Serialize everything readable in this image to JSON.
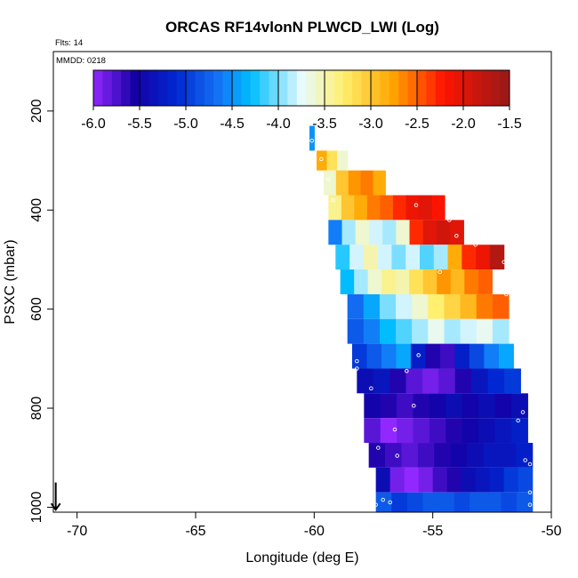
{
  "chart_data": {
    "type": "heatmap",
    "title": "ORCAS RF14vlonN PLWCD_LWI (Log)",
    "annotations": [
      "Flts: 14",
      "MMDD: 0218"
    ],
    "xlabel": "Longitude (deg E)",
    "ylabel": "PSXC (mbar)",
    "xlim": [
      -71,
      -50
    ],
    "ylim": [
      1010,
      80
    ],
    "x_ticks": [
      -70,
      -65,
      -60,
      -55,
      -50
    ],
    "y_ticks": [
      200,
      400,
      600,
      800,
      1000
    ],
    "colorbar": {
      "range": [
        -6.0,
        -1.5
      ],
      "ticks": [
        -6.0,
        -5.5,
        -5.0,
        -4.5,
        -4.0,
        -3.5,
        -3.0,
        -2.5,
        -2.0,
        -1.5
      ],
      "tick_labels": [
        "-6.0",
        "-5.5",
        "-5.0",
        "-4.5",
        "-4.0",
        "-3.5",
        "-3.0",
        "-2.5",
        "-2.0",
        "-1.5"
      ],
      "segments": 45
    },
    "rows": [
      {
        "p_top": 230,
        "p_bot": 280,
        "x0": -60.2,
        "x1": -60.0,
        "values": [
          -4.5
        ]
      },
      {
        "p_top": 280,
        "p_bot": 320,
        "x0": -59.9,
        "x1": -58.6,
        "values": [
          -2.8,
          -3.2,
          -3.6
        ]
      },
      {
        "p_top": 320,
        "p_bot": 370,
        "x0": -59.6,
        "x1": -57.0,
        "values": [
          -3.6,
          -3.0,
          -2.7,
          -2.6,
          -2.8
        ]
      },
      {
        "p_top": 370,
        "p_bot": 420,
        "x0": -59.4,
        "x1": -54.5,
        "values": [
          -3.4,
          -3.0,
          -2.8,
          -2.6,
          -2.5,
          -2.3,
          -2.1,
          -2.0,
          -2.2
        ]
      },
      {
        "p_top": 420,
        "p_bot": 470,
        "x0": -59.4,
        "x1": -53.7,
        "values": [
          -4.6,
          -3.9,
          -3.6,
          -3.8,
          -3.9,
          -3.6,
          -2.3,
          -2.0,
          -1.9,
          -2.0
        ]
      },
      {
        "p_top": 470,
        "p_bot": 520,
        "x0": -59.1,
        "x1": -52.0,
        "values": [
          -4.2,
          -3.8,
          -3.5,
          -3.8,
          -4.0,
          -3.8,
          -4.1,
          -3.9,
          -2.8,
          -2.3,
          -2.1,
          -1.7
        ]
      },
      {
        "p_top": 520,
        "p_bot": 570,
        "x0": -58.9,
        "x1": -52.5,
        "values": [
          -4.3,
          -3.9,
          -3.6,
          -3.4,
          -3.5,
          -3.2,
          -3.0,
          -2.7,
          -2.9,
          -2.6,
          -2.5
        ]
      },
      {
        "p_top": 570,
        "p_bot": 620,
        "x0": -58.6,
        "x1": -51.8,
        "values": [
          -4.7,
          -4.4,
          -4.0,
          -3.8,
          -3.6,
          -3.3,
          -3.1,
          -2.9,
          -2.6,
          -2.5
        ]
      },
      {
        "p_top": 620,
        "p_bot": 670,
        "x0": -58.6,
        "x1": -51.8,
        "values": [
          -4.8,
          -4.6,
          -4.3,
          -4.1,
          -3.9,
          -3.7,
          -3.9,
          -3.8,
          -3.7,
          -3.9
        ]
      },
      {
        "p_top": 670,
        "p_bot": 720,
        "x0": -58.4,
        "x1": -51.6,
        "values": [
          -5.0,
          -4.8,
          -4.6,
          -4.4,
          -5.2,
          -5.6,
          -5.7,
          -5.2,
          -4.9,
          -4.6,
          -4.4
        ]
      },
      {
        "p_top": 720,
        "p_bot": 770,
        "x0": -58.2,
        "x1": -51.3,
        "values": [
          -5.4,
          -5.3,
          -5.6,
          -5.8,
          -5.9,
          -5.8,
          -5.6,
          -5.3,
          -5.1,
          -5.0
        ]
      },
      {
        "p_top": 770,
        "p_bot": 820,
        "x0": -57.9,
        "x1": -51.0,
        "values": [
          -5.5,
          -5.6,
          -5.7,
          -5.6,
          -5.5,
          -5.4,
          -5.5,
          -5.4,
          -5.5,
          -5.4
        ]
      },
      {
        "p_top": 820,
        "p_bot": 870,
        "x0": -57.9,
        "x1": -51.0,
        "values": [
          -5.8,
          -6.0,
          -5.9,
          -5.8,
          -5.7,
          -5.6,
          -5.5,
          -5.4,
          -5.3,
          -5.2
        ]
      },
      {
        "p_top": 870,
        "p_bot": 920,
        "x0": -57.7,
        "x1": -50.8,
        "values": [
          -5.6,
          -5.7,
          -5.8,
          -5.7,
          -5.6,
          -5.5,
          -5.4,
          -5.3,
          -5.3,
          -5.2
        ]
      },
      {
        "p_top": 920,
        "p_bot": 970,
        "x0": -57.4,
        "x1": -50.8,
        "values": [
          -5.4,
          -5.9,
          -6.0,
          -5.9,
          -5.7,
          -5.6,
          -5.4,
          -5.3,
          -5.2,
          -5.0,
          -4.9
        ]
      },
      {
        "p_top": 970,
        "p_bot": 1010,
        "x0": -57.4,
        "x1": -50.8,
        "values": [
          -4.8,
          -5.0,
          -4.9,
          -4.8,
          -4.8,
          -4.9,
          -4.8,
          -4.8,
          -4.9,
          -4.8
        ]
      }
    ],
    "markers": [
      {
        "x": -60.1,
        "p": 260
      },
      {
        "x": -59.7,
        "p": 297
      },
      {
        "x": -59.4,
        "p": 338
      },
      {
        "x": -59.2,
        "p": 380
      },
      {
        "x": -55.7,
        "p": 390
      },
      {
        "x": -54.3,
        "p": 420
      },
      {
        "x": -54.0,
        "p": 452
      },
      {
        "x": -53.2,
        "p": 470
      },
      {
        "x": -52.0,
        "p": 505
      },
      {
        "x": -54.7,
        "p": 525
      },
      {
        "x": -51.9,
        "p": 570
      },
      {
        "x": -59.0,
        "p": 634
      },
      {
        "x": -58.2,
        "p": 720
      },
      {
        "x": -55.6,
        "p": 693
      },
      {
        "x": -58.5,
        "p": 800
      },
      {
        "x": -55.8,
        "p": 795
      },
      {
        "x": -56.6,
        "p": 843
      },
      {
        "x": -51.4,
        "p": 825
      },
      {
        "x": -51.2,
        "p": 808
      },
      {
        "x": -58.0,
        "p": 893
      },
      {
        "x": -57.3,
        "p": 880
      },
      {
        "x": -56.5,
        "p": 896
      },
      {
        "x": -51.1,
        "p": 905
      },
      {
        "x": -50.9,
        "p": 913
      },
      {
        "x": -57.1,
        "p": 985
      },
      {
        "x": -56.8,
        "p": 990
      },
      {
        "x": -50.9,
        "p": 970
      },
      {
        "x": -50.9,
        "p": 995
      },
      {
        "x": -57.4,
        "p": 995
      },
      {
        "x": -58.2,
        "p": 705
      },
      {
        "x": -56.1,
        "p": 725
      },
      {
        "x": -58.8,
        "p": 687
      },
      {
        "x": -57.6,
        "p": 760
      }
    ],
    "arrow": {
      "x": -70.9,
      "p_from": 950,
      "p_to": 1005
    }
  }
}
